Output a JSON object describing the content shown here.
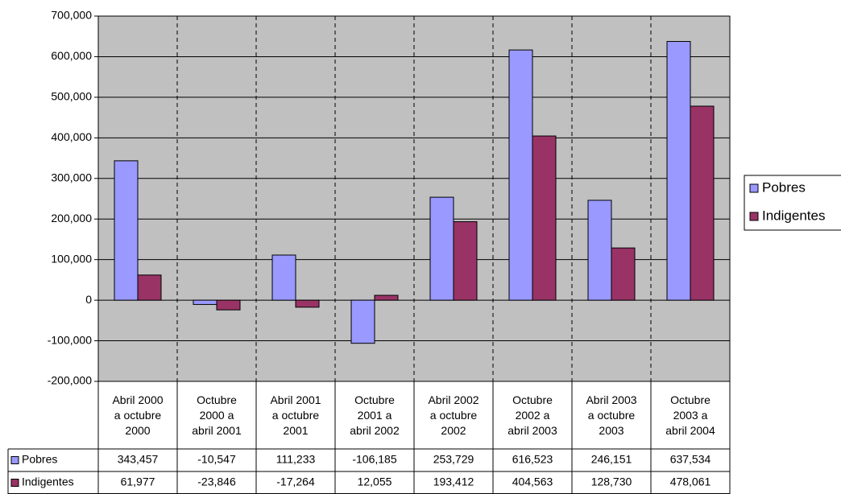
{
  "chart_data": {
    "type": "bar",
    "categories": [
      "Abril 2000\na octubre\n2000",
      "Octubre\n2000 a\nabril 2001",
      "Abril 2001\na octubre\n2001",
      "Octubre\n2001 a\nabril 2002",
      "Abril 2002\na octubre\n2002",
      "Octubre\n2002 a\nabril 2003",
      "Abril 2003\na octubre\n2003",
      "Octubre\n2003 a\nabril 2004"
    ],
    "series": [
      {
        "name": "Pobres",
        "color": "#9999ff",
        "values": [
          343457,
          -10547,
          111233,
          -106185,
          253729,
          616523,
          246151,
          637534
        ],
        "value_labels": [
          "343,457",
          "-10,547",
          "111,233",
          "-106,185",
          "253,729",
          "616,523",
          "246,151",
          "637,534"
        ]
      },
      {
        "name": "Indigentes",
        "color": "#993366",
        "values": [
          61977,
          -23846,
          -17264,
          12055,
          193412,
          404563,
          128730,
          478061
        ],
        "value_labels": [
          "61,977",
          "-23,846",
          "-17,264",
          "12,055",
          "193,412",
          "404,563",
          "128,730",
          "478,061"
        ]
      }
    ],
    "ylim": [
      -200000,
      700000
    ],
    "yticks": [
      {
        "value": -200000,
        "label": "-200,000"
      },
      {
        "value": -100000,
        "label": "-100,000"
      },
      0,
      {
        "value": 100000,
        "label": "100,000"
      },
      {
        "value": 200000,
        "label": "200,000"
      },
      {
        "value": 300000,
        "label": "300,000"
      },
      {
        "value": 400000,
        "label": "400,000"
      },
      {
        "value": 500000,
        "label": "500,000"
      },
      {
        "value": 600000,
        "label": "600,000"
      },
      {
        "value": 700000,
        "label": "700,000"
      }
    ],
    "grid": true,
    "legend": "right",
    "plot_background": "#c0c0c0"
  }
}
